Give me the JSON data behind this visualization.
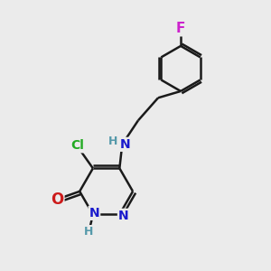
{
  "background_color": "#ebebeb",
  "bond_color": "#1a1a1a",
  "bond_width": 1.8,
  "atom_colors": {
    "C": "#1a1a1a",
    "N": "#1a1acc",
    "O": "#cc1a1a",
    "Cl": "#22aa22",
    "F": "#cc22cc",
    "H": "#5599aa"
  },
  "font_size": 10,
  "fig_size": [
    3.0,
    3.0
  ],
  "dpi": 100,
  "xlim": [
    0,
    10
  ],
  "ylim": [
    0,
    10
  ]
}
